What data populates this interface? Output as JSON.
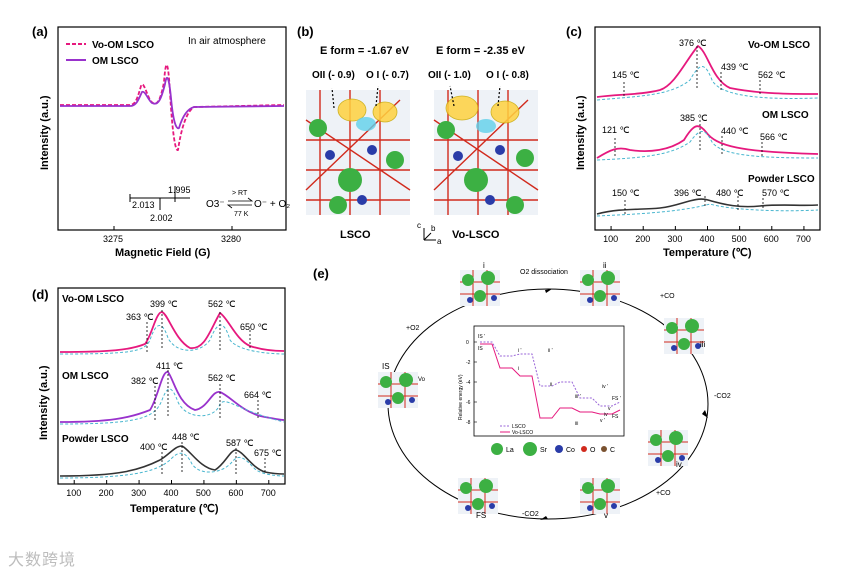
{
  "panels": {
    "a": {
      "label": "(a)",
      "legend": [
        "Vo-OM LSCO",
        "OM LSCO"
      ],
      "note": "In air atmosphere",
      "xlabel": "Magnetic Field (G)",
      "ylabel": "Intensity (a.u.)",
      "xticks": [
        "3275",
        "3280"
      ],
      "g_values": [
        "2.013",
        "1.995",
        "2.002"
      ],
      "reaction": {
        "left": "O3⁻",
        "right": "O⁻ + O₂",
        "top": "> RT",
        "bottom": "77 K"
      }
    },
    "b": {
      "label": "(b)",
      "left_eform": "E form = -1.67 eV",
      "right_eform": "E form = -2.35 eV",
      "left_o2": "OII (- 0.9)",
      "left_o1": "O I (- 0.7)",
      "right_o2": "OII (- 1.0)",
      "right_o1": "O I (- 0.8)",
      "left_name": "LSCO",
      "right_name": "Vo-LSCO",
      "axes": [
        "c",
        "b",
        "a"
      ]
    },
    "c": {
      "label": "(c)",
      "xlabel": "Temperature (℃)",
      "ylabel": "Intensity (a.u.)",
      "xticks": [
        "100",
        "200",
        "300",
        "400",
        "500",
        "600",
        "700"
      ],
      "series_labels": [
        "Vo-OM LSCO",
        "OM LSCO",
        "Powder LSCO"
      ],
      "peaks_vo": [
        "145 ℃",
        "376 ℃",
        "439 ℃",
        "562 ℃"
      ],
      "peaks_om": [
        "121 ℃",
        "385 ℃",
        "440 ℃",
        "566 ℃"
      ],
      "peaks_powder": [
        "150 ℃",
        "396 ℃",
        "480 ℃",
        "570 ℃"
      ]
    },
    "d": {
      "label": "(d)",
      "xlabel": "Temperature (℃)",
      "ylabel": "Intensity (a.u.)",
      "xticks": [
        "100",
        "200",
        "300",
        "400",
        "500",
        "600",
        "700"
      ],
      "series_labels": [
        "Vo-OM LSCO",
        "OM LSCO",
        "Powder LSCO"
      ],
      "peaks_vo": [
        "363 ℃",
        "399 ℃",
        "562 ℃",
        "650 ℃"
      ],
      "peaks_om": [
        "382 ℃",
        "411 ℃",
        "562 ℃",
        "664 ℃"
      ],
      "peaks_powder": [
        "400 ℃",
        "448 ℃",
        "587 ℃",
        "675 ℃"
      ]
    },
    "e": {
      "label": "(e)",
      "states": [
        "i",
        "ii",
        "iii",
        "iv",
        "v",
        "FS",
        "IS"
      ],
      "steps": [
        "O2 dissociation",
        "+CO",
        "-CO2",
        "+CO",
        "-CO2",
        "+O2"
      ],
      "inset_ylabel": "Relative energy (eV)",
      "inset_yticks": [
        "0",
        "-2",
        "-4",
        "-6",
        "-8"
      ],
      "inset_legend": [
        "LSCO",
        "Vo-LSCO"
      ],
      "inset_state_labels": [
        "IS '",
        "IS",
        "i '",
        "i",
        "ii '",
        "ii",
        "iii '",
        "iii",
        "iv '",
        "iv",
        "v '",
        "v",
        "FS '",
        "FS"
      ],
      "element_legend": [
        "La",
        "Sr",
        "Co",
        "O",
        "C"
      ],
      "vo_label": "Vo"
    }
  },
  "watermark": "大数跨境",
  "colors": {
    "magenta": "#e6197e",
    "purple": "#9932cc",
    "cyan": "#49b6cf",
    "green": "#3cb043",
    "blue": "#2a3ca8",
    "red": "#d12a1d",
    "dark": "#333333"
  }
}
